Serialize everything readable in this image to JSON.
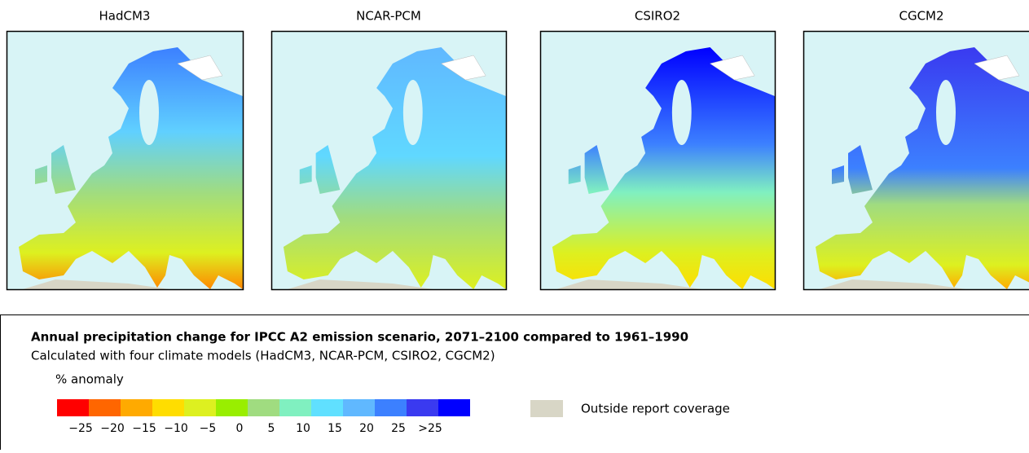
{
  "panels": [
    {
      "title": "HadCM3"
    },
    {
      "title": "NCAR-PCM"
    },
    {
      "title": "CSIRO2"
    },
    {
      "title": "CGCM2"
    }
  ],
  "legend": {
    "title": "Annual precipitation change for IPCC A2 emission scenario, 2071–2100 compared to 1961–1990",
    "subtitle": "Calculated with four climate models (HadCM3, NCAR-PCM, CSIRO2, CGCM2)",
    "unit": "% anomaly",
    "colors": [
      "#ff0000",
      "#ff6600",
      "#ffaa00",
      "#ffdd00",
      "#ddf020",
      "#99ee00",
      "#a0dc80",
      "#80f0c0",
      "#60e0ff",
      "#60b8ff",
      "#3c80ff",
      "#3a3af0",
      "#0000ff"
    ],
    "labels": [
      "−25",
      "−20",
      "−15",
      "−10",
      "−5",
      "0",
      "5",
      "10",
      "15",
      "20",
      "25",
      ">25"
    ],
    "outside_coverage": "Outside report coverage"
  }
}
